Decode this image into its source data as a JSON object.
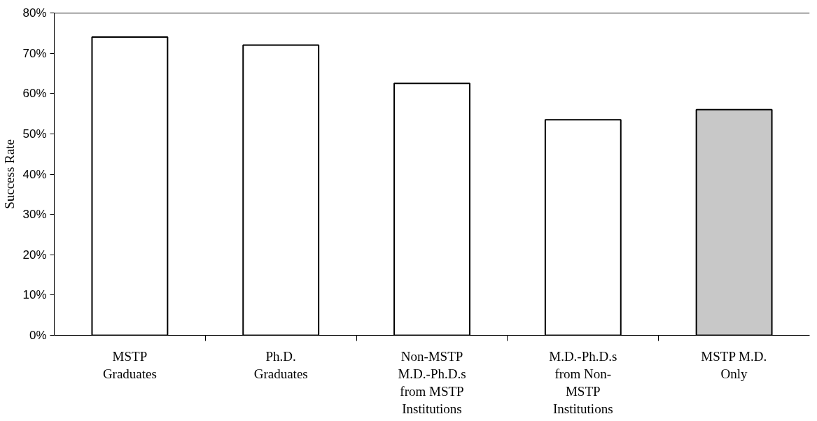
{
  "chart_data": {
    "type": "bar",
    "ylabel": "Success Rate",
    "categories": [
      "MSTP Graduates",
      "Ph.D. Graduates",
      "Non-MSTP M.D.-Ph.D.s from MSTP Institutions",
      "M.D.-Ph.D.s from Non-MSTP Institutions",
      "MSTP M.D. Only"
    ],
    "values": [
      74,
      72,
      62.5,
      53.5,
      56
    ],
    "colors": [
      "#ffffff",
      "#ffffff",
      "#ffffff",
      "#ffffff",
      "#c8c8c8"
    ],
    "ylim": [
      0,
      80
    ],
    "yticks": [
      {
        "value": 0,
        "label": "0%"
      },
      {
        "value": 10,
        "label": "10%"
      },
      {
        "value": 20,
        "label": "20%"
      },
      {
        "value": 30,
        "label": "30%"
      },
      {
        "value": 40,
        "label": "40%"
      },
      {
        "value": 50,
        "label": "50%"
      },
      {
        "value": 60,
        "label": "60%"
      },
      {
        "value": 70,
        "label": "70%"
      },
      {
        "value": 80,
        "label": "80%"
      }
    ],
    "grid": false
  }
}
